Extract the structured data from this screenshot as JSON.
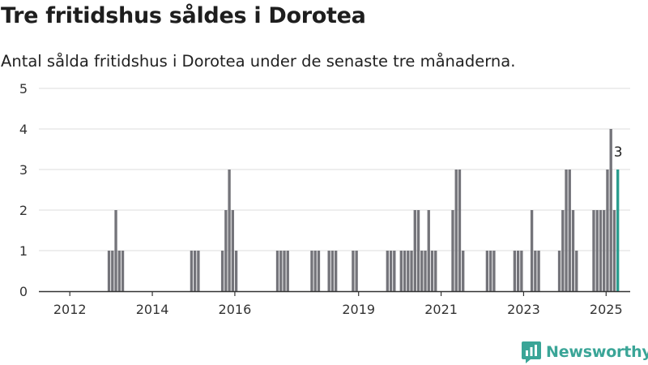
{
  "title": "Tre fritidshus såldes i Dorotea",
  "subtitle": "Antal sålda fritidshus i Dorotea under de senaste tre månaderna.",
  "brand": "Newsworthy",
  "colors": {
    "bar": "#74747a",
    "highlight": "#2a9d8f",
    "grid": "#dcdcdc",
    "axis": "#333333",
    "brand": "#3aa597"
  },
  "chart_data": {
    "type": "bar",
    "x_unit": "month",
    "xlim": [
      "2011-04",
      "2025-08"
    ],
    "ylim": [
      0,
      5
    ],
    "y_ticks": [
      "0",
      "1",
      "2",
      "3",
      "4",
      "5"
    ],
    "x_ticks": [
      {
        "label": "2012",
        "date": "2012-01"
      },
      {
        "label": "2014",
        "date": "2014-01"
      },
      {
        "label": "2016",
        "date": "2016-01"
      },
      {
        "label": "2019",
        "date": "2019-01"
      },
      {
        "label": "2021",
        "date": "2021-01"
      },
      {
        "label": "2023",
        "date": "2023-01"
      },
      {
        "label": "2025",
        "date": "2025-01"
      }
    ],
    "grid": true,
    "bars": [
      {
        "date": "2012-12",
        "value": 1
      },
      {
        "date": "2013-01",
        "value": 1
      },
      {
        "date": "2013-02",
        "value": 2
      },
      {
        "date": "2013-03",
        "value": 1
      },
      {
        "date": "2013-04",
        "value": 1
      },
      {
        "date": "2014-12",
        "value": 1
      },
      {
        "date": "2015-01",
        "value": 1
      },
      {
        "date": "2015-02",
        "value": 1
      },
      {
        "date": "2015-09",
        "value": 1
      },
      {
        "date": "2015-10",
        "value": 2
      },
      {
        "date": "2015-11",
        "value": 3
      },
      {
        "date": "2015-12",
        "value": 2
      },
      {
        "date": "2016-01",
        "value": 1
      },
      {
        "date": "2017-01",
        "value": 1
      },
      {
        "date": "2017-02",
        "value": 1
      },
      {
        "date": "2017-03",
        "value": 1
      },
      {
        "date": "2017-04",
        "value": 1
      },
      {
        "date": "2017-11",
        "value": 1
      },
      {
        "date": "2017-12",
        "value": 1
      },
      {
        "date": "2018-01",
        "value": 1
      },
      {
        "date": "2018-04",
        "value": 1
      },
      {
        "date": "2018-05",
        "value": 1
      },
      {
        "date": "2018-06",
        "value": 1
      },
      {
        "date": "2018-11",
        "value": 1
      },
      {
        "date": "2018-12",
        "value": 1
      },
      {
        "date": "2019-09",
        "value": 1
      },
      {
        "date": "2019-10",
        "value": 1
      },
      {
        "date": "2019-11",
        "value": 1
      },
      {
        "date": "2020-01",
        "value": 1
      },
      {
        "date": "2020-02",
        "value": 1
      },
      {
        "date": "2020-03",
        "value": 1
      },
      {
        "date": "2020-04",
        "value": 1
      },
      {
        "date": "2020-05",
        "value": 2
      },
      {
        "date": "2020-06",
        "value": 2
      },
      {
        "date": "2020-07",
        "value": 1
      },
      {
        "date": "2020-08",
        "value": 1
      },
      {
        "date": "2020-09",
        "value": 2
      },
      {
        "date": "2020-10",
        "value": 1
      },
      {
        "date": "2020-11",
        "value": 1
      },
      {
        "date": "2021-04",
        "value": 2
      },
      {
        "date": "2021-05",
        "value": 3
      },
      {
        "date": "2021-06",
        "value": 3
      },
      {
        "date": "2021-07",
        "value": 1
      },
      {
        "date": "2022-02",
        "value": 1
      },
      {
        "date": "2022-03",
        "value": 1
      },
      {
        "date": "2022-04",
        "value": 1
      },
      {
        "date": "2022-10",
        "value": 1
      },
      {
        "date": "2022-11",
        "value": 1
      },
      {
        "date": "2022-12",
        "value": 1
      },
      {
        "date": "2023-03",
        "value": 2
      },
      {
        "date": "2023-04",
        "value": 1
      },
      {
        "date": "2023-05",
        "value": 1
      },
      {
        "date": "2023-11",
        "value": 1
      },
      {
        "date": "2023-12",
        "value": 2
      },
      {
        "date": "2024-01",
        "value": 3
      },
      {
        "date": "2024-02",
        "value": 3
      },
      {
        "date": "2024-03",
        "value": 2
      },
      {
        "date": "2024-04",
        "value": 1
      },
      {
        "date": "2024-09",
        "value": 2
      },
      {
        "date": "2024-10",
        "value": 2
      },
      {
        "date": "2024-11",
        "value": 2
      },
      {
        "date": "2024-12",
        "value": 2
      },
      {
        "date": "2025-01",
        "value": 3
      },
      {
        "date": "2025-02",
        "value": 4
      },
      {
        "date": "2025-03",
        "value": 2
      },
      {
        "date": "2025-04",
        "value": 3,
        "highlight": true,
        "label": "3"
      }
    ]
  }
}
